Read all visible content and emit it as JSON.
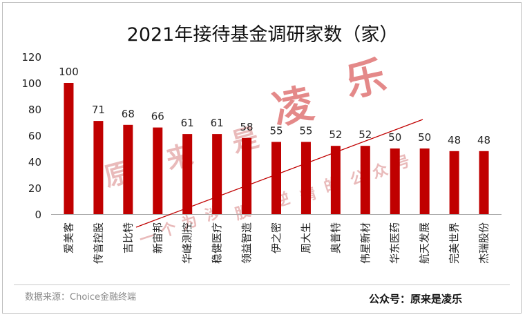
{
  "chart_data": {
    "type": "bar",
    "title": "2021年接待基金调研家数（家）",
    "categories": [
      "爱美客",
      "传音控股",
      "吉比特",
      "新宙邦",
      "华峰测控",
      "稳健医疗",
      "领益智造",
      "伊之密",
      "周大生",
      "奥普特",
      "伟星新材",
      "华东医药",
      "航天发展",
      "完美世界",
      "杰瑞股份"
    ],
    "values": [
      100,
      71,
      68,
      66,
      61,
      61,
      58,
      55,
      55,
      52,
      52,
      50,
      50,
      48,
      48
    ],
    "yticks": [
      "0",
      "20",
      "40",
      "60",
      "80",
      "100",
      "120"
    ],
    "ylim": [
      0,
      120
    ],
    "grid": false,
    "bar_color": "#c00000",
    "trend_line_color": "#c00000"
  },
  "watermark": {
    "diagonal": [
      "原",
      "来",
      "是"
    ],
    "big": [
      "凌",
      "乐"
    ],
    "small_chars": [
      "一",
      "个",
      "为",
      "涉",
      "股",
      "逆",
      "精",
      "的",
      "公",
      "众",
      "号"
    ]
  },
  "footer": {
    "source": "数据来源：Choice金融终端",
    "account": "公众号：原来是凌乐"
  }
}
